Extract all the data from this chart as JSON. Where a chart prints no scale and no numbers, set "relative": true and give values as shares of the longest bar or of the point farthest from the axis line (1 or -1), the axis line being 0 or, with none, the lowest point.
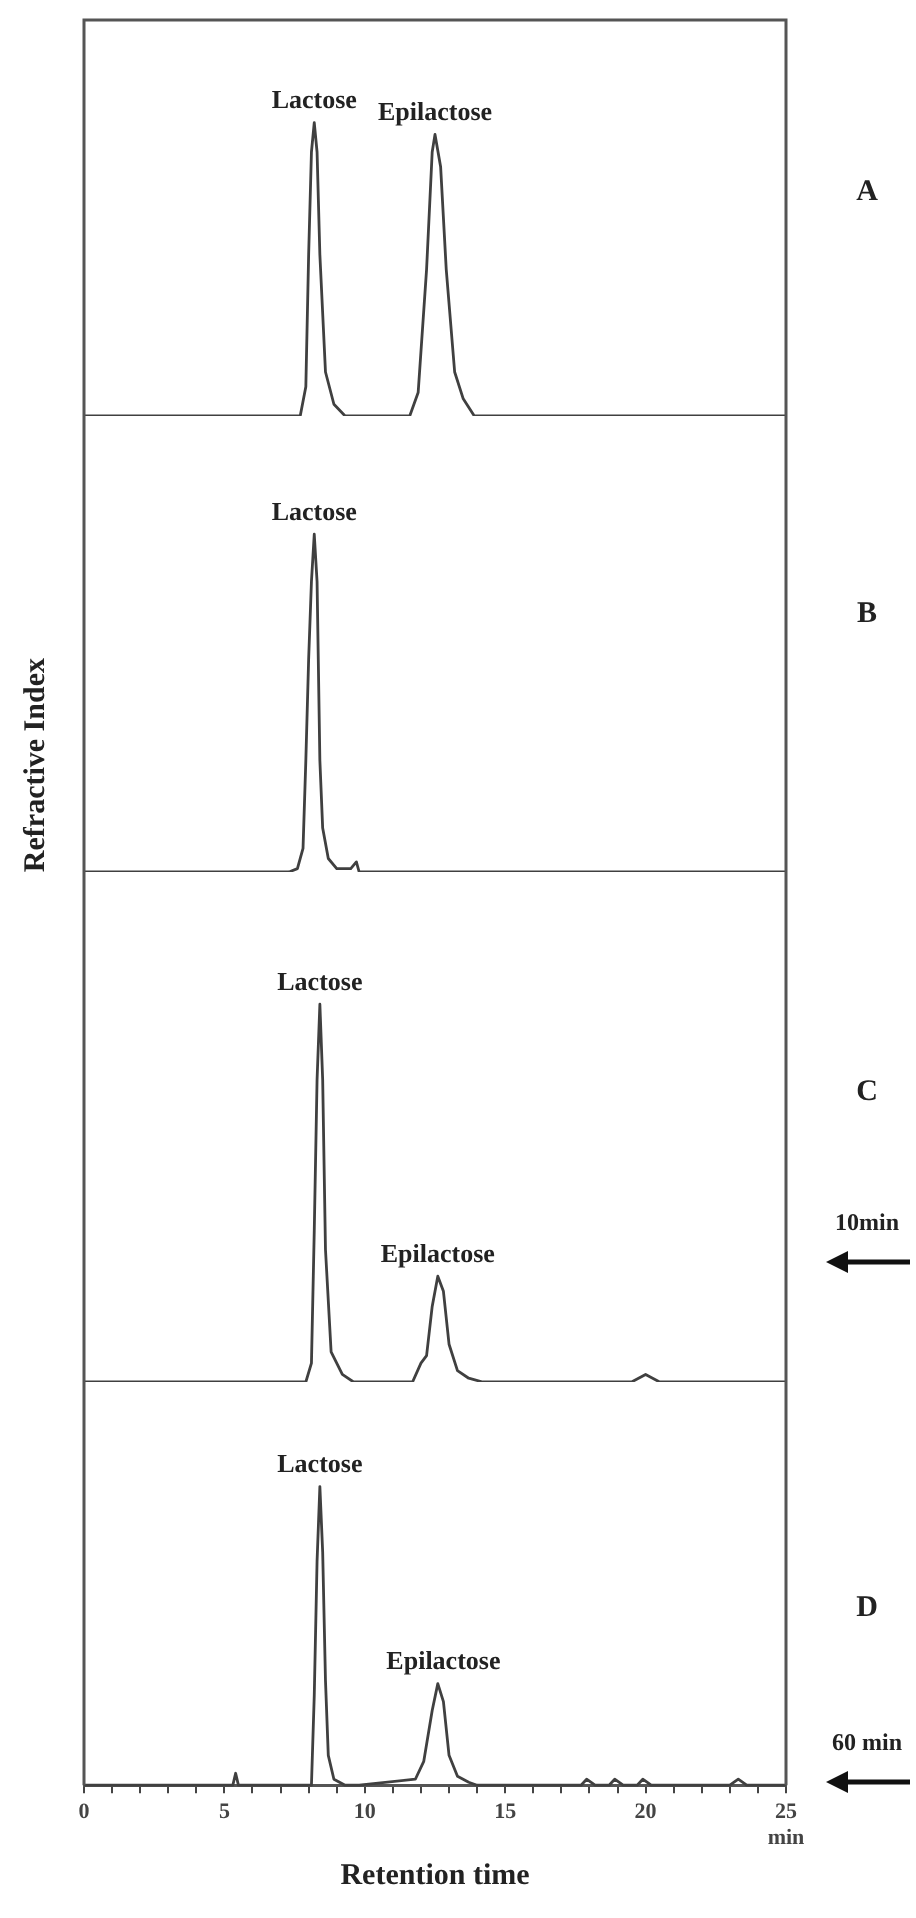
{
  "chart_data": [
    {
      "type": "line",
      "relative": true,
      "tick_labels": false,
      "legend": false,
      "marker": "none",
      "line_style": "solid",
      "xlim": [
        0,
        25
      ],
      "annotations": [
        "A",
        {
          "text": "Lactose",
          "x": 8.2,
          "y": 1
        },
        {
          "text": "Epilactose",
          "x": 12.5,
          "y": 0.96
        }
      ],
      "series": [
        {
          "color": "#404040",
          "x": [
            0,
            7.7,
            7.9,
            8.0,
            8.1,
            8.2,
            8.3,
            8.4,
            8.6,
            8.9,
            9.3,
            11.6,
            11.9,
            12.2,
            12.4,
            12.5,
            12.7,
            12.9,
            13.2,
            13.5,
            13.9,
            14.3,
            25
          ],
          "values": [
            0,
            0,
            0.1,
            0.55,
            0.9,
            1,
            0.9,
            0.55,
            0.15,
            0.04,
            0,
            0,
            0.08,
            0.5,
            0.9,
            0.96,
            0.85,
            0.5,
            0.15,
            0.06,
            0,
            0,
            0
          ]
        }
      ]
    },
    {
      "type": "line",
      "relative": true,
      "tick_labels": false,
      "legend": false,
      "marker": "none",
      "line_style": "solid",
      "xlim": [
        0,
        25
      ],
      "ylabel": "Refractive Index",
      "annotations": [
        "B",
        {
          "text": "Lactose",
          "x": 8.2,
          "y": 1
        }
      ],
      "series": [
        {
          "color": "#404040",
          "x": [
            0,
            7.3,
            7.6,
            7.8,
            7.9,
            8.0,
            8.1,
            8.2,
            8.3,
            8.4,
            8.5,
            8.7,
            9.0,
            9.5,
            9.7,
            9.8,
            25
          ],
          "values": [
            0,
            0,
            0.01,
            0.07,
            0.33,
            0.63,
            0.86,
            1,
            0.86,
            0.33,
            0.13,
            0.04,
            0.01,
            0.01,
            0.03,
            0,
            0
          ]
        }
      ]
    },
    {
      "type": "line",
      "relative": true,
      "tick_labels": false,
      "legend": false,
      "marker": "none",
      "line_style": "solid",
      "xlim": [
        0,
        25
      ],
      "annotations": [
        "C",
        "10min",
        {
          "text": "Lactose",
          "x": 8.4,
          "y": 1
        },
        {
          "text": "Epilactose",
          "x": 12.6,
          "y": 0.28
        }
      ],
      "series": [
        {
          "color": "#404040",
          "x": [
            0,
            7.9,
            8.1,
            8.2,
            8.3,
            8.4,
            8.5,
            8.6,
            8.8,
            9.2,
            9.6,
            11.7,
            12.0,
            12.2,
            12.4,
            12.6,
            12.8,
            13.0,
            13.3,
            13.7,
            14.2,
            19.5,
            20,
            20.5,
            25
          ],
          "values": [
            0,
            0,
            0.05,
            0.4,
            0.8,
            1,
            0.8,
            0.35,
            0.08,
            0.02,
            0,
            0,
            0.05,
            0.07,
            0.2,
            0.28,
            0.24,
            0.1,
            0.03,
            0.01,
            0,
            0,
            0.02,
            0,
            0
          ]
        }
      ]
    },
    {
      "type": "line",
      "relative": true,
      "tick_labels": "x",
      "legend": false,
      "marker": "none",
      "line_style": "solid",
      "xlim": [
        0,
        25
      ],
      "xlabel": "Retention time",
      "xticks": [
        0,
        {
          "value": 1,
          "label": null
        },
        {
          "value": 2,
          "label": null
        },
        {
          "value": 3,
          "label": null
        },
        {
          "value": 4,
          "label": null
        },
        5,
        {
          "value": 6,
          "label": null
        },
        {
          "value": 7,
          "label": null
        },
        {
          "value": 8,
          "label": null
        },
        {
          "value": 9,
          "label": null
        },
        10,
        {
          "value": 11,
          "label": null
        },
        {
          "value": 12,
          "label": null
        },
        {
          "value": 13,
          "label": null
        },
        {
          "value": 14,
          "label": null
        },
        15,
        {
          "value": 16,
          "label": null
        },
        {
          "value": 17,
          "label": null
        },
        {
          "value": 18,
          "label": null
        },
        {
          "value": 19,
          "label": null
        },
        20,
        {
          "value": 21,
          "label": null
        },
        {
          "value": 22,
          "label": null
        },
        {
          "value": 23,
          "label": null
        },
        {
          "value": 24,
          "label": null
        },
        {
          "value": 25,
          "label": "25 min"
        }
      ],
      "annotations": [
        "D",
        "60 min",
        {
          "text": "Lactose",
          "x": 8.4,
          "y": 1
        },
        {
          "text": "Epilactose",
          "x": 12.8,
          "y": 0.34
        }
      ],
      "series": [
        {
          "color": "#404040",
          "x": [
            0,
            5.3,
            5.4,
            5.5,
            8.1,
            8.2,
            8.3,
            8.4,
            8.5,
            8.6,
            8.7,
            8.9,
            9.3,
            9.8,
            11.8,
            12.1,
            12.4,
            12.6,
            12.8,
            13.0,
            13.3,
            13.7,
            14.0,
            17.7,
            17.9,
            18.2,
            18.7,
            18.9,
            19.2,
            19.7,
            19.9,
            20.2,
            23.0,
            23.3,
            23.6,
            25
          ],
          "values": [
            0,
            0,
            0.04,
            0,
            0,
            0.3,
            0.75,
            1,
            0.78,
            0.35,
            0.1,
            0.02,
            0,
            0,
            0.02,
            0.08,
            0.25,
            0.34,
            0.28,
            0.1,
            0.03,
            0.01,
            0,
            0,
            0.02,
            0,
            0,
            0.02,
            0,
            0,
            0.02,
            0,
            0,
            0.02,
            0,
            0
          ]
        }
      ]
    }
  ]
}
